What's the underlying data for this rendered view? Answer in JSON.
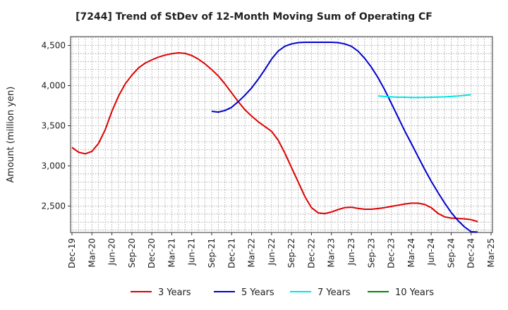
{
  "chart_data": {
    "type": "line",
    "title": "[7244]  Trend of StDev of 12-Month Moving Sum of Operating CF",
    "ylabel": "Amount (million yen)",
    "xlabel": "",
    "ylim": [
      2170,
      4610
    ],
    "yticks": [
      2500,
      3000,
      3500,
      4000,
      4500
    ],
    "ytick_labels": [
      "2,500",
      "3,000",
      "3,500",
      "4,000",
      "4,500"
    ],
    "xtick_labels": [
      "Dec-19",
      "Mar-20",
      "Jun-20",
      "Sep-20",
      "Dec-20",
      "Mar-21",
      "Jun-21",
      "Sep-21",
      "Dec-21",
      "Mar-22",
      "Jun-22",
      "Sep-22",
      "Dec-22",
      "Mar-23",
      "Jun-23",
      "Sep-23",
      "Dec-23",
      "Mar-24",
      "Jun-24",
      "Sep-24",
      "Dec-24",
      "Mar-25"
    ],
    "grid": true,
    "legend_position": "bottom",
    "series": [
      {
        "name": "3 Years",
        "color": "#dd0000",
        "points": [
          [
            "Dec-19",
            3230
          ],
          [
            "Jan-20",
            3170
          ],
          [
            "Feb-20",
            3150
          ],
          [
            "Mar-20",
            3180
          ],
          [
            "Apr-20",
            3280
          ],
          [
            "May-20",
            3450
          ],
          [
            "Jun-20",
            3680
          ],
          [
            "Jul-20",
            3870
          ],
          [
            "Aug-20",
            4020
          ],
          [
            "Sep-20",
            4130
          ],
          [
            "Oct-20",
            4220
          ],
          [
            "Nov-20",
            4280
          ],
          [
            "Dec-20",
            4320
          ],
          [
            "Jan-21",
            4355
          ],
          [
            "Feb-21",
            4380
          ],
          [
            "Mar-21",
            4398
          ],
          [
            "Apr-21",
            4408
          ],
          [
            "May-21",
            4402
          ],
          [
            "Jun-21",
            4375
          ],
          [
            "Jul-21",
            4330
          ],
          [
            "Aug-21",
            4270
          ],
          [
            "Sep-21",
            4200
          ],
          [
            "Oct-21",
            4120
          ],
          [
            "Nov-21",
            4020
          ],
          [
            "Dec-21",
            3910
          ],
          [
            "Jan-22",
            3800
          ],
          [
            "Feb-22",
            3700
          ],
          [
            "Mar-22",
            3620
          ],
          [
            "Apr-22",
            3550
          ],
          [
            "May-22",
            3490
          ],
          [
            "Jun-22",
            3430
          ],
          [
            "Jul-22",
            3320
          ],
          [
            "Aug-22",
            3160
          ],
          [
            "Sep-22",
            2980
          ],
          [
            "Oct-22",
            2800
          ],
          [
            "Nov-22",
            2620
          ],
          [
            "Dec-22",
            2480
          ],
          [
            "Jan-23",
            2415
          ],
          [
            "Feb-23",
            2405
          ],
          [
            "Mar-23",
            2425
          ],
          [
            "Apr-23",
            2455
          ],
          [
            "May-23",
            2480
          ],
          [
            "Jun-23",
            2485
          ],
          [
            "Jul-23",
            2470
          ],
          [
            "Aug-23",
            2460
          ],
          [
            "Sep-23",
            2460
          ],
          [
            "Oct-23",
            2468
          ],
          [
            "Nov-23",
            2480
          ],
          [
            "Dec-23",
            2495
          ],
          [
            "Jan-24",
            2510
          ],
          [
            "Feb-24",
            2525
          ],
          [
            "Mar-24",
            2535
          ],
          [
            "Apr-24",
            2535
          ],
          [
            "May-24",
            2520
          ],
          [
            "Jun-24",
            2480
          ],
          [
            "Jul-24",
            2410
          ],
          [
            "Aug-24",
            2365
          ],
          [
            "Sep-24",
            2350
          ],
          [
            "Oct-24",
            2345
          ],
          [
            "Nov-24",
            2340
          ],
          [
            "Dec-24",
            2330
          ],
          [
            "Jan-25",
            2305
          ]
        ]
      },
      {
        "name": "5 Years",
        "color": "#0000cc",
        "points": [
          [
            "Sep-21",
            3680
          ],
          [
            "Oct-21",
            3670
          ],
          [
            "Nov-21",
            3690
          ],
          [
            "Dec-21",
            3730
          ],
          [
            "Jan-22",
            3800
          ],
          [
            "Feb-22",
            3880
          ],
          [
            "Mar-22",
            3970
          ],
          [
            "Apr-22",
            4080
          ],
          [
            "May-22",
            4200
          ],
          [
            "Jun-22",
            4330
          ],
          [
            "Jul-22",
            4430
          ],
          [
            "Aug-22",
            4490
          ],
          [
            "Sep-22",
            4520
          ],
          [
            "Oct-22",
            4535
          ],
          [
            "Nov-22",
            4540
          ],
          [
            "Dec-22",
            4540
          ],
          [
            "Jan-23",
            4540
          ],
          [
            "Feb-23",
            4540
          ],
          [
            "Mar-23",
            4540
          ],
          [
            "Apr-23",
            4535
          ],
          [
            "May-23",
            4520
          ],
          [
            "Jun-23",
            4490
          ],
          [
            "Jul-23",
            4430
          ],
          [
            "Aug-23",
            4340
          ],
          [
            "Sep-23",
            4230
          ],
          [
            "Oct-23",
            4100
          ],
          [
            "Nov-23",
            3950
          ],
          [
            "Dec-23",
            3780
          ],
          [
            "Jan-24",
            3610
          ],
          [
            "Feb-24",
            3440
          ],
          [
            "Mar-24",
            3280
          ],
          [
            "Apr-24",
            3120
          ],
          [
            "May-24",
            2960
          ],
          [
            "Jun-24",
            2810
          ],
          [
            "Jul-24",
            2670
          ],
          [
            "Aug-24",
            2540
          ],
          [
            "Sep-24",
            2420
          ],
          [
            "Oct-24",
            2320
          ],
          [
            "Nov-24",
            2240
          ],
          [
            "Dec-24",
            2180
          ],
          [
            "Jan-25",
            2175
          ]
        ]
      },
      {
        "name": "7 Years",
        "color": "#00e5e5",
        "points": [
          [
            "Oct-23",
            3872
          ],
          [
            "Nov-23",
            3865
          ],
          [
            "Dec-23",
            3860
          ],
          [
            "Jan-24",
            3855
          ],
          [
            "Feb-24",
            3855
          ],
          [
            "Mar-24",
            3852
          ],
          [
            "Apr-24",
            3852
          ],
          [
            "May-24",
            3853
          ],
          [
            "Jun-24",
            3855
          ],
          [
            "Jul-24",
            3857
          ],
          [
            "Aug-24",
            3860
          ],
          [
            "Sep-24",
            3865
          ],
          [
            "Oct-24",
            3870
          ],
          [
            "Nov-24",
            3878
          ],
          [
            "Dec-24",
            3886
          ]
        ]
      },
      {
        "name": "10 Years",
        "color": "#008800",
        "points": []
      }
    ]
  }
}
